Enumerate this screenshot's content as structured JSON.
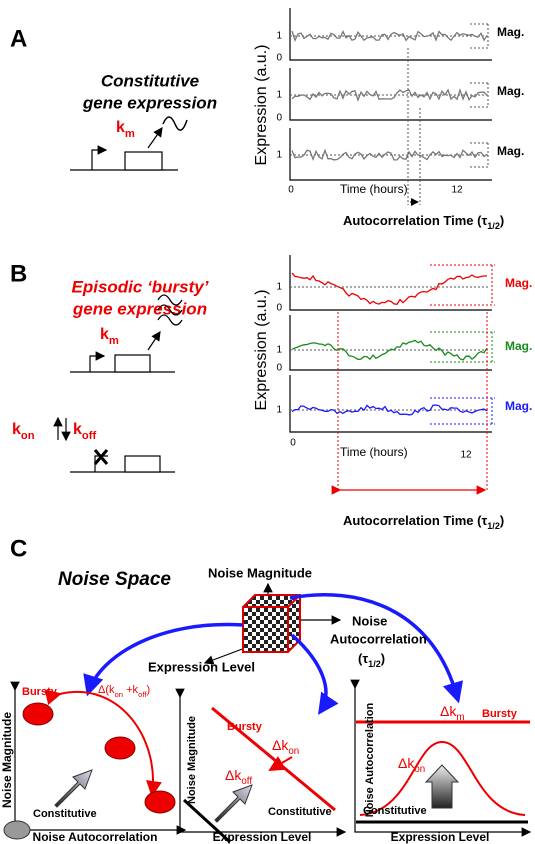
{
  "panel_a": {
    "letter": "A",
    "title": [
      "Constitutive",
      "gene expression"
    ],
    "rate": [
      "k",
      "m"
    ],
    "y_axis_label": "Expression (a.u.)",
    "traces": [
      {
        "ticks": [
          "1",
          "0"
        ],
        "label": "Mag."
      },
      {
        "ticks": [
          "1",
          "0"
        ],
        "label": "Mag."
      },
      {
        "ticks": [
          "1"
        ],
        "label": "Mag."
      }
    ],
    "x_ticks": [
      "0",
      "12"
    ],
    "x_axis_label": "Time (hours)",
    "autocorrelation_label": [
      "Autocorrelation Time (τ",
      "1/2",
      ")"
    ]
  },
  "panel_b": {
    "letter": "B",
    "title": [
      "Episodic ‘bursty’",
      "gene expression"
    ],
    "rate_m": [
      "k",
      "m"
    ],
    "rate_on": [
      "k",
      "on"
    ],
    "rate_off": [
      "k",
      "off"
    ],
    "y_axis_label": "Expression (a.u.)",
    "traces": [
      {
        "ticks": [
          "1",
          "0"
        ],
        "label": "Mag."
      },
      {
        "ticks": [
          "1",
          "0"
        ],
        "label": "Mag."
      },
      {
        "ticks": [
          "1"
        ],
        "label": "Mag."
      }
    ],
    "x_ticks": [
      "0",
      "12"
    ],
    "x_axis_label": "Time (hours)",
    "autocorrelation_label": [
      "Autocorrelation Time (τ",
      "1/2",
      ")"
    ]
  },
  "panel_c": {
    "letter": "C",
    "title": "Noise Space",
    "axis_up": "Noise Magnitude",
    "axis_right": [
      "Noise",
      "Autocorrelation"
    ],
    "axis_right_sub": [
      "(τ",
      "1/2",
      ")"
    ],
    "axis_down": "Expression Level",
    "plots": [
      {
        "y_label": "Noise Magnitude",
        "x_label": "Noise Autocorrelation",
        "bursty": "Bursty",
        "constitutive": "Constitutive",
        "delta": [
          "Δ(k",
          "on",
          " +k",
          "off",
          ")"
        ]
      },
      {
        "y_label": "Noise Magnitude",
        "x_label": "Expression Level",
        "bursty": "Bursty",
        "constitutive": "Constitutive",
        "delta_off": [
          "Δk",
          "off"
        ],
        "delta_on": [
          "Δk",
          "on"
        ]
      },
      {
        "y_label": "Noise Autocorrelation",
        "x_label": "Expression Level",
        "bursty": "Bursty",
        "constitutive": "Constitutive",
        "delta_m": [
          "Δk",
          "m"
        ],
        "delta_on": [
          "Δk",
          "on"
        ]
      }
    ]
  }
}
